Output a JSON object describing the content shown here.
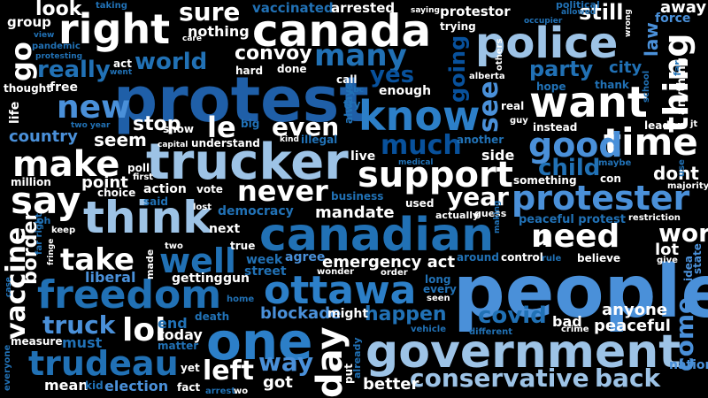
{
  "palette": {
    "white": "#ffffff",
    "pale": "#d6e4f3",
    "light": "#9dc3e6",
    "sky": "#6baed6",
    "mid": "#4292c6",
    "blue": "#2171b5",
    "deep": "#08519c",
    "navy": "#08306b",
    "background": "#000000"
  },
  "words": [
    {
      "text": "people",
      "color": "#4a90d9"
    },
    {
      "text": "protest",
      "color": "#1f5fa8"
    },
    {
      "text": "trucker",
      "color": "#9dc3e6"
    },
    {
      "text": "government",
      "color": "#9dc3e6"
    },
    {
      "text": "canadian",
      "color": "#2171b5"
    },
    {
      "text": "one",
      "color": "#2c7fc8"
    },
    {
      "text": "think",
      "color": "#9dc3e6"
    },
    {
      "text": "canada",
      "color": "#ffffff"
    },
    {
      "text": "police",
      "color": "#9dc3e6"
    },
    {
      "text": "know",
      "color": "#2c7fc8"
    },
    {
      "text": "want",
      "color": "#ffffff"
    },
    {
      "text": "freedom",
      "color": "#2171b5"
    },
    {
      "text": "ottawa",
      "color": "#2c7fc8"
    },
    {
      "text": "protester",
      "color": "#4a90d9"
    },
    {
      "text": "support",
      "color": "#ffffff"
    },
    {
      "text": "right",
      "color": "#ffffff"
    },
    {
      "text": "time",
      "color": "#ffffff"
    },
    {
      "text": "say",
      "color": "#ffffff"
    },
    {
      "text": "make",
      "color": "#ffffff"
    },
    {
      "text": "well",
      "color": "#2171b5"
    },
    {
      "text": "trudeau",
      "color": "#2171b5"
    },
    {
      "text": "good",
      "color": "#4a90d9"
    },
    {
      "text": "need",
      "color": "#ffffff"
    },
    {
      "text": "new",
      "color": "#4a90d9"
    },
    {
      "text": "take",
      "color": "#ffffff"
    },
    {
      "text": "many",
      "color": "#2171b5"
    },
    {
      "text": "never",
      "color": "#ffffff"
    },
    {
      "text": "lol",
      "color": "#ffffff"
    },
    {
      "text": "thing",
      "color": "#ffffff"
    },
    {
      "text": "day",
      "color": "#ffffff"
    },
    {
      "text": "much",
      "color": "#08519c"
    },
    {
      "text": "conservative",
      "color": "#9dc3e6"
    },
    {
      "text": "back",
      "color": "#9dc3e6"
    },
    {
      "text": "le",
      "color": "#ffffff"
    },
    {
      "text": "left",
      "color": "#ffffff"
    },
    {
      "text": "way",
      "color": "#4a90d9"
    },
    {
      "text": "truck",
      "color": "#4a90d9"
    },
    {
      "text": "vaccine",
      "color": "#ffffff"
    },
    {
      "text": "even",
      "color": "#ffffff"
    },
    {
      "text": "year",
      "color": "#ffffff"
    },
    {
      "text": "see",
      "color": "#4a90d9"
    },
    {
      "text": "world",
      "color": "#2171b5"
    },
    {
      "text": "party",
      "color": "#2171b5"
    },
    {
      "text": "child",
      "color": "#2171b5"
    },
    {
      "text": "covid",
      "color": "#2171b5"
    },
    {
      "text": "happen",
      "color": "#2171b5"
    },
    {
      "text": "work",
      "color": "#ffffff"
    },
    {
      "text": "go",
      "color": "#ffffff"
    },
    {
      "text": "sure",
      "color": "#ffffff"
    },
    {
      "text": "really",
      "color": "#2171b5"
    },
    {
      "text": "yes",
      "color": "#08519c"
    },
    {
      "text": "come",
      "color": "#4a90d9"
    },
    {
      "text": "going",
      "color": "#08519c"
    },
    {
      "text": "still",
      "color": "#ffffff"
    },
    {
      "text": "convoy",
      "color": "#ffffff"
    },
    {
      "text": "stop",
      "color": "#ffffff"
    },
    {
      "text": "mandate",
      "color": "#ffffff"
    },
    {
      "text": "emergency act",
      "color": "#ffffff"
    },
    {
      "text": "dont",
      "color": "#ffffff"
    },
    {
      "text": "u",
      "color": "#ffffff"
    },
    {
      "text": "border",
      "color": "#ffffff"
    },
    {
      "text": "look",
      "color": "#ffffff"
    },
    {
      "text": "seem",
      "color": "#ffffff"
    },
    {
      "text": "country",
      "color": "#4a90d9"
    },
    {
      "text": "point",
      "color": "#ffffff"
    },
    {
      "text": "blockade",
      "color": "#4a90d9"
    },
    {
      "text": "liberal",
      "color": "#4a90d9"
    },
    {
      "text": "today",
      "color": "#ffffff"
    },
    {
      "text": "election",
      "color": "#4a90d9"
    },
    {
      "text": "got",
      "color": "#ffffff"
    },
    {
      "text": "better",
      "color": "#ffffff"
    },
    {
      "text": "anyone",
      "color": "#ffffff"
    },
    {
      "text": "peaceful",
      "color": "#ffffff"
    },
    {
      "text": "bad",
      "color": "#ffffff"
    },
    {
      "text": "must",
      "color": "#2171b5"
    },
    {
      "text": "mean",
      "color": "#ffffff"
    },
    {
      "text": "end",
      "color": "#2171b5"
    },
    {
      "text": "nothing",
      "color": "#ffffff"
    },
    {
      "text": "vaccinated",
      "color": "#2171b5"
    },
    {
      "text": "arrested",
      "color": "#ffffff"
    },
    {
      "text": "protestor",
      "color": "#ffffff"
    },
    {
      "text": "group",
      "color": "#ffffff"
    },
    {
      "text": "law",
      "color": "#4a90d9"
    },
    {
      "text": "away",
      "color": "#ffffff"
    },
    {
      "text": "force",
      "color": "#4a90d9"
    },
    {
      "text": "city",
      "color": "#2171b5"
    },
    {
      "text": "free",
      "color": "#ffffff"
    },
    {
      "text": "life",
      "color": "#ffffff"
    },
    {
      "text": "enough",
      "color": "#ffffff"
    },
    {
      "text": "another",
      "color": "#2171b5"
    },
    {
      "text": "side",
      "color": "#ffffff"
    },
    {
      "text": "live",
      "color": "#ffffff"
    },
    {
      "text": "instead",
      "color": "#ffffff"
    },
    {
      "text": "something",
      "color": "#ffffff"
    },
    {
      "text": "action",
      "color": "#ffffff"
    },
    {
      "text": "next",
      "color": "#ffffff"
    },
    {
      "text": "democracy",
      "color": "#2171b5"
    },
    {
      "text": "week",
      "color": "#2171b5"
    },
    {
      "text": "gun",
      "color": "#ffffff"
    },
    {
      "text": "getting",
      "color": "#ffffff"
    },
    {
      "text": "agree",
      "color": "#4a90d9"
    },
    {
      "text": "street",
      "color": "#2171b5"
    },
    {
      "text": "might",
      "color": "#ffffff"
    },
    {
      "text": "control",
      "color": "#ffffff"
    },
    {
      "text": "believe",
      "color": "#ffffff"
    },
    {
      "text": "lot",
      "color": "#ffffff"
    },
    {
      "text": "nation",
      "color": "#4a90d9"
    },
    {
      "text": "hope",
      "color": "#2171b5"
    },
    {
      "text": "understand",
      "color": "#ffffff"
    },
    {
      "text": "show",
      "color": "#ffffff"
    },
    {
      "text": "big",
      "color": "#2171b5"
    },
    {
      "text": "million",
      "color": "#ffffff"
    },
    {
      "text": "used",
      "color": "#ffffff"
    },
    {
      "text": "true",
      "color": "#ffffff"
    },
    {
      "text": "thought",
      "color": "#ffffff"
    },
    {
      "text": "done",
      "color": "#ffffff"
    },
    {
      "text": "call",
      "color": "#ffffff"
    },
    {
      "text": "real",
      "color": "#ffffff"
    },
    {
      "text": "kid",
      "color": "#2171b5"
    },
    {
      "text": "fact",
      "color": "#ffffff"
    },
    {
      "text": "yet",
      "color": "#ffffff"
    },
    {
      "text": "death",
      "color": "#2171b5"
    },
    {
      "text": "matter",
      "color": "#2171b5"
    },
    {
      "text": "measure",
      "color": "#ffffff"
    },
    {
      "text": "vote",
      "color": "#ffffff"
    },
    {
      "text": "choice",
      "color": "#ffffff"
    },
    {
      "text": "poll",
      "color": "#ffffff"
    },
    {
      "text": "first",
      "color": "#ffffff"
    },
    {
      "text": "lost",
      "color": "#ffffff"
    },
    {
      "text": "said",
      "color": "#2171b5"
    },
    {
      "text": "business",
      "color": "#2171b5"
    },
    {
      "text": "actually",
      "color": "#ffffff"
    },
    {
      "text": "guess",
      "color": "#ffffff"
    },
    {
      "text": "peaceful protest",
      "color": "#2171b5"
    },
    {
      "text": "restriction",
      "color": "#ffffff"
    },
    {
      "text": "maybe",
      "color": "#2171b5"
    },
    {
      "text": "con",
      "color": "#ffffff"
    },
    {
      "text": "majority",
      "color": "#ffffff"
    },
    {
      "text": "around",
      "color": "#2171b5"
    },
    {
      "text": "rule",
      "color": "#2171b5"
    },
    {
      "text": "give",
      "color": "#ffffff"
    },
    {
      "text": "idea",
      "color": "#4a90d9"
    },
    {
      "text": "state",
      "color": "#4a90d9"
    },
    {
      "text": "ca",
      "color": "#4a90d9"
    },
    {
      "text": "wonder",
      "color": "#ffffff"
    },
    {
      "text": "order",
      "color": "#ffffff"
    },
    {
      "text": "every",
      "color": "#2171b5"
    },
    {
      "text": "long",
      "color": "#2171b5"
    },
    {
      "text": "seen",
      "color": "#ffffff"
    },
    {
      "text": "vehicle",
      "color": "#2171b5"
    },
    {
      "text": "different",
      "color": "#2171b5"
    },
    {
      "text": "crime",
      "color": "#ffffff"
    },
    {
      "text": "made",
      "color": "#ffffff"
    },
    {
      "text": "two",
      "color": "#ffffff"
    },
    {
      "text": "home",
      "color": "#2171b5"
    },
    {
      "text": "arrest",
      "color": "#2171b5"
    },
    {
      "text": "wo",
      "color": "#ffffff"
    },
    {
      "text": "everyone",
      "color": "#2171b5"
    },
    {
      "text": "far right",
      "color": "#2171b5"
    },
    {
      "text": "fringe",
      "color": "#ffffff"
    },
    {
      "text": "keep",
      "color": "#ffffff"
    },
    {
      "text": "oh",
      "color": "#2171b5"
    },
    {
      "text": "case",
      "color": "#2171b5"
    },
    {
      "text": "two year",
      "color": "#2171b5"
    },
    {
      "text": "capital",
      "color": "#ffffff"
    },
    {
      "text": "kind",
      "color": "#ffffff"
    },
    {
      "text": "illegal",
      "color": "#2171b5"
    },
    {
      "text": "medical",
      "color": "#2171b5"
    },
    {
      "text": "making",
      "color": "#2171b5"
    },
    {
      "text": "always",
      "color": "#2171b5"
    },
    {
      "text": "try",
      "color": "#2171b5"
    },
    {
      "text": "cbc",
      "color": "#2171b5"
    },
    {
      "text": "others",
      "color": "#ffffff"
    },
    {
      "text": "alberta",
      "color": "#ffffff"
    },
    {
      "text": "guy",
      "color": "#ffffff"
    },
    {
      "text": "put",
      "color": "#ffffff"
    },
    {
      "text": "already",
      "color": "#2171b5"
    },
    {
      "text": "leader",
      "color": "#ffffff"
    },
    {
      "text": "jt",
      "color": "#ffffff"
    },
    {
      "text": "use",
      "color": "#2171b5"
    },
    {
      "text": "far",
      "color": "#2171b5"
    },
    {
      "text": "thank",
      "color": "#2171b5"
    },
    {
      "text": "school",
      "color": "#2171b5"
    },
    {
      "text": "anything",
      "color": "#ffffff"
    },
    {
      "text": "wrong",
      "color": "#ffffff"
    },
    {
      "text": "occupier",
      "color": "#2171b5"
    },
    {
      "text": "political",
      "color": "#2171b5"
    },
    {
      "text": "allowed",
      "color": "#2171b5"
    },
    {
      "text": "saying",
      "color": "#ffffff"
    },
    {
      "text": "trying",
      "color": "#ffffff"
    },
    {
      "text": "taking",
      "color": "#2171b5"
    },
    {
      "text": "view",
      "color": "#2171b5"
    },
    {
      "text": "pandemic",
      "color": "#2171b5"
    },
    {
      "text": "protesting",
      "color": "#2171b5"
    },
    {
      "text": "care",
      "color": "#ffffff"
    },
    {
      "text": "hard",
      "color": "#ffffff"
    },
    {
      "text": "act",
      "color": "#ffffff"
    },
    {
      "text": "went",
      "color": "#2171b5"
    }
  ]
}
